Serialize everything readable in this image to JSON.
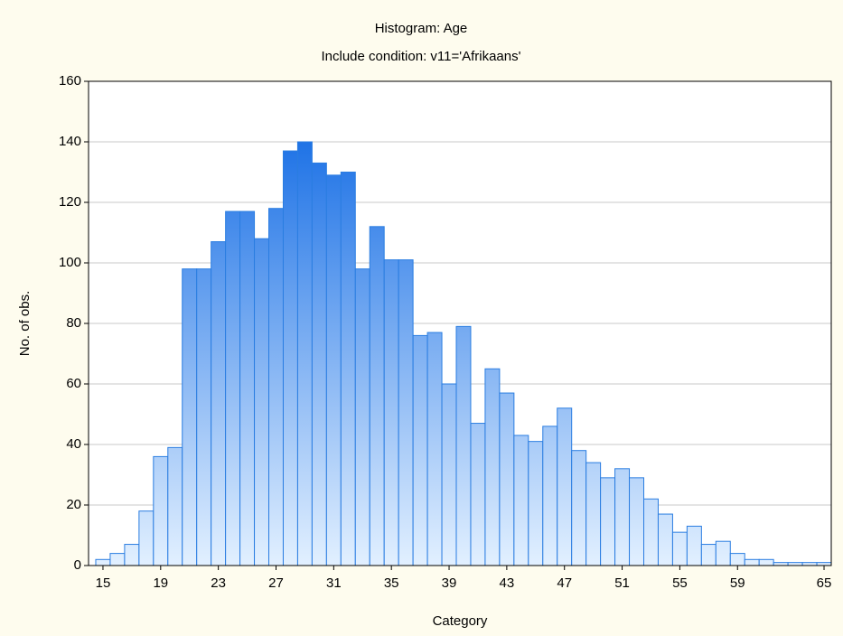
{
  "chart_data": {
    "type": "histogram",
    "title": "Histogram: Age",
    "subtitle": "Include condition: v11='Afrikaans'",
    "xlabel": "Category",
    "ylabel": "No. of obs.",
    "bins": [
      14.5,
      15.5,
      16.5,
      17.5,
      18.5,
      19.5,
      20.5,
      21.5,
      22.5,
      23.5,
      24.5,
      25.5,
      26.5,
      27.5,
      28.5,
      29.5,
      30.5,
      31.5,
      32.5,
      33.5,
      34.5,
      35.5,
      36.5,
      37.5,
      38.5,
      39.5,
      40.5,
      41.5,
      42.5,
      43.5,
      44.5,
      45.5,
      46.5,
      47.5,
      48.5,
      49.5,
      50.5,
      51.5,
      52.5,
      53.5,
      54.5,
      55.5,
      56.5,
      57.5,
      58.5,
      59.5,
      60.5,
      61.5,
      62.5,
      63.5,
      64.5,
      65.5
    ],
    "values": [
      2,
      4,
      7,
      18,
      36,
      39,
      98,
      98,
      107,
      117,
      117,
      108,
      118,
      137,
      140,
      133,
      129,
      130,
      98,
      112,
      101,
      101,
      76,
      77,
      60,
      79,
      47,
      65,
      57,
      43,
      41,
      46,
      52,
      38,
      34,
      29,
      32,
      29,
      22,
      17,
      11,
      13,
      7,
      8,
      4,
      2,
      2,
      1,
      1,
      1,
      1
    ],
    "color": "#2a7de1",
    "xlim": [
      14,
      65.5
    ],
    "xticks": [
      15,
      19,
      23,
      27,
      31,
      35,
      39,
      43,
      47,
      51,
      55,
      59,
      65
    ],
    "ylim": [
      0,
      160
    ],
    "yticks": [
      0,
      20,
      40,
      60,
      80,
      100,
      120,
      140,
      160
    ],
    "grid": true
  }
}
